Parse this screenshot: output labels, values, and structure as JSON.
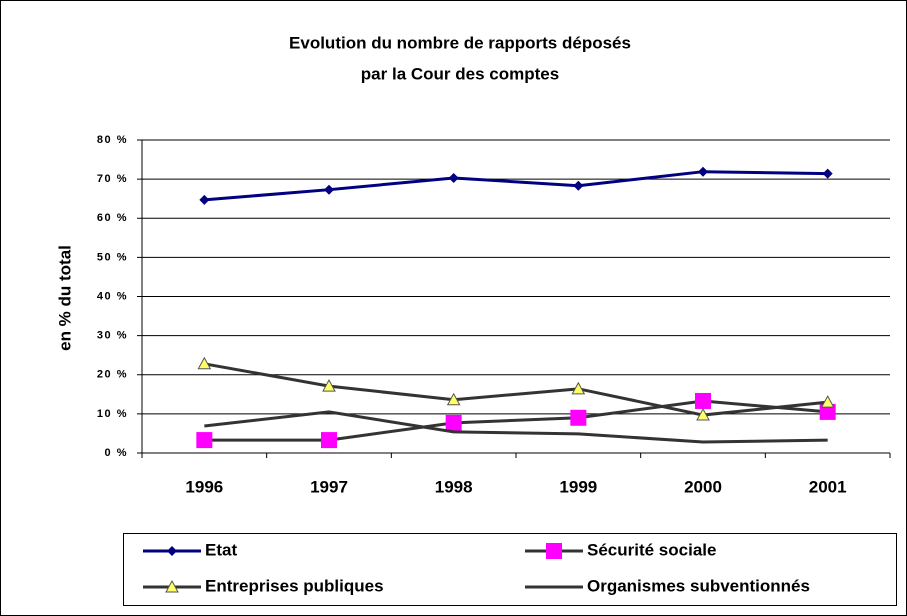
{
  "chart_data": {
    "type": "line",
    "title": [
      "Evolution du nombre de rapports déposés",
      "par la Cour des comptes"
    ],
    "y_label": "en % du total",
    "categories": [
      "1996",
      "1997",
      "1998",
      "1999",
      "2000",
      "2001"
    ],
    "series": [
      {
        "name": "Etat",
        "color": "#000080",
        "marker": "diamond",
        "marker_color": "#000080",
        "values": [
          64.7,
          67.3,
          70.3,
          68.3,
          71.9,
          71.4
        ]
      },
      {
        "name": "Sécurité sociale",
        "color": "#333333",
        "marker": "square",
        "marker_color": "#ff00ff",
        "values": [
          3.3,
          3.3,
          7.7,
          9.0,
          13.3,
          10.5
        ]
      },
      {
        "name": "Entreprises publiques",
        "color": "#333333",
        "marker": "triangle",
        "marker_color": "#ffff66",
        "values": [
          22.8,
          17.1,
          13.6,
          16.4,
          9.7,
          13.0
        ]
      },
      {
        "name": "Organismes subventionnés",
        "color": "#333333",
        "marker": "none",
        "marker_color": "#333333",
        "values": [
          6.9,
          10.5,
          5.4,
          4.9,
          2.8,
          3.3
        ]
      }
    ],
    "ylim": [
      0,
      80
    ],
    "yticks": [
      {
        "value": 0,
        "label": "0 %"
      },
      {
        "value": 10,
        "label": "10 %"
      },
      {
        "value": 20,
        "label": "20 %"
      },
      {
        "value": 30,
        "label": "30 %"
      },
      {
        "value": 40,
        "label": "40 %"
      },
      {
        "value": 50,
        "label": "50 %"
      },
      {
        "value": 60,
        "label": "60 %"
      },
      {
        "value": 70,
        "label": "70 %"
      },
      {
        "value": 80,
        "label": "80 %"
      }
    ],
    "grid": true,
    "legend": "bottom"
  }
}
